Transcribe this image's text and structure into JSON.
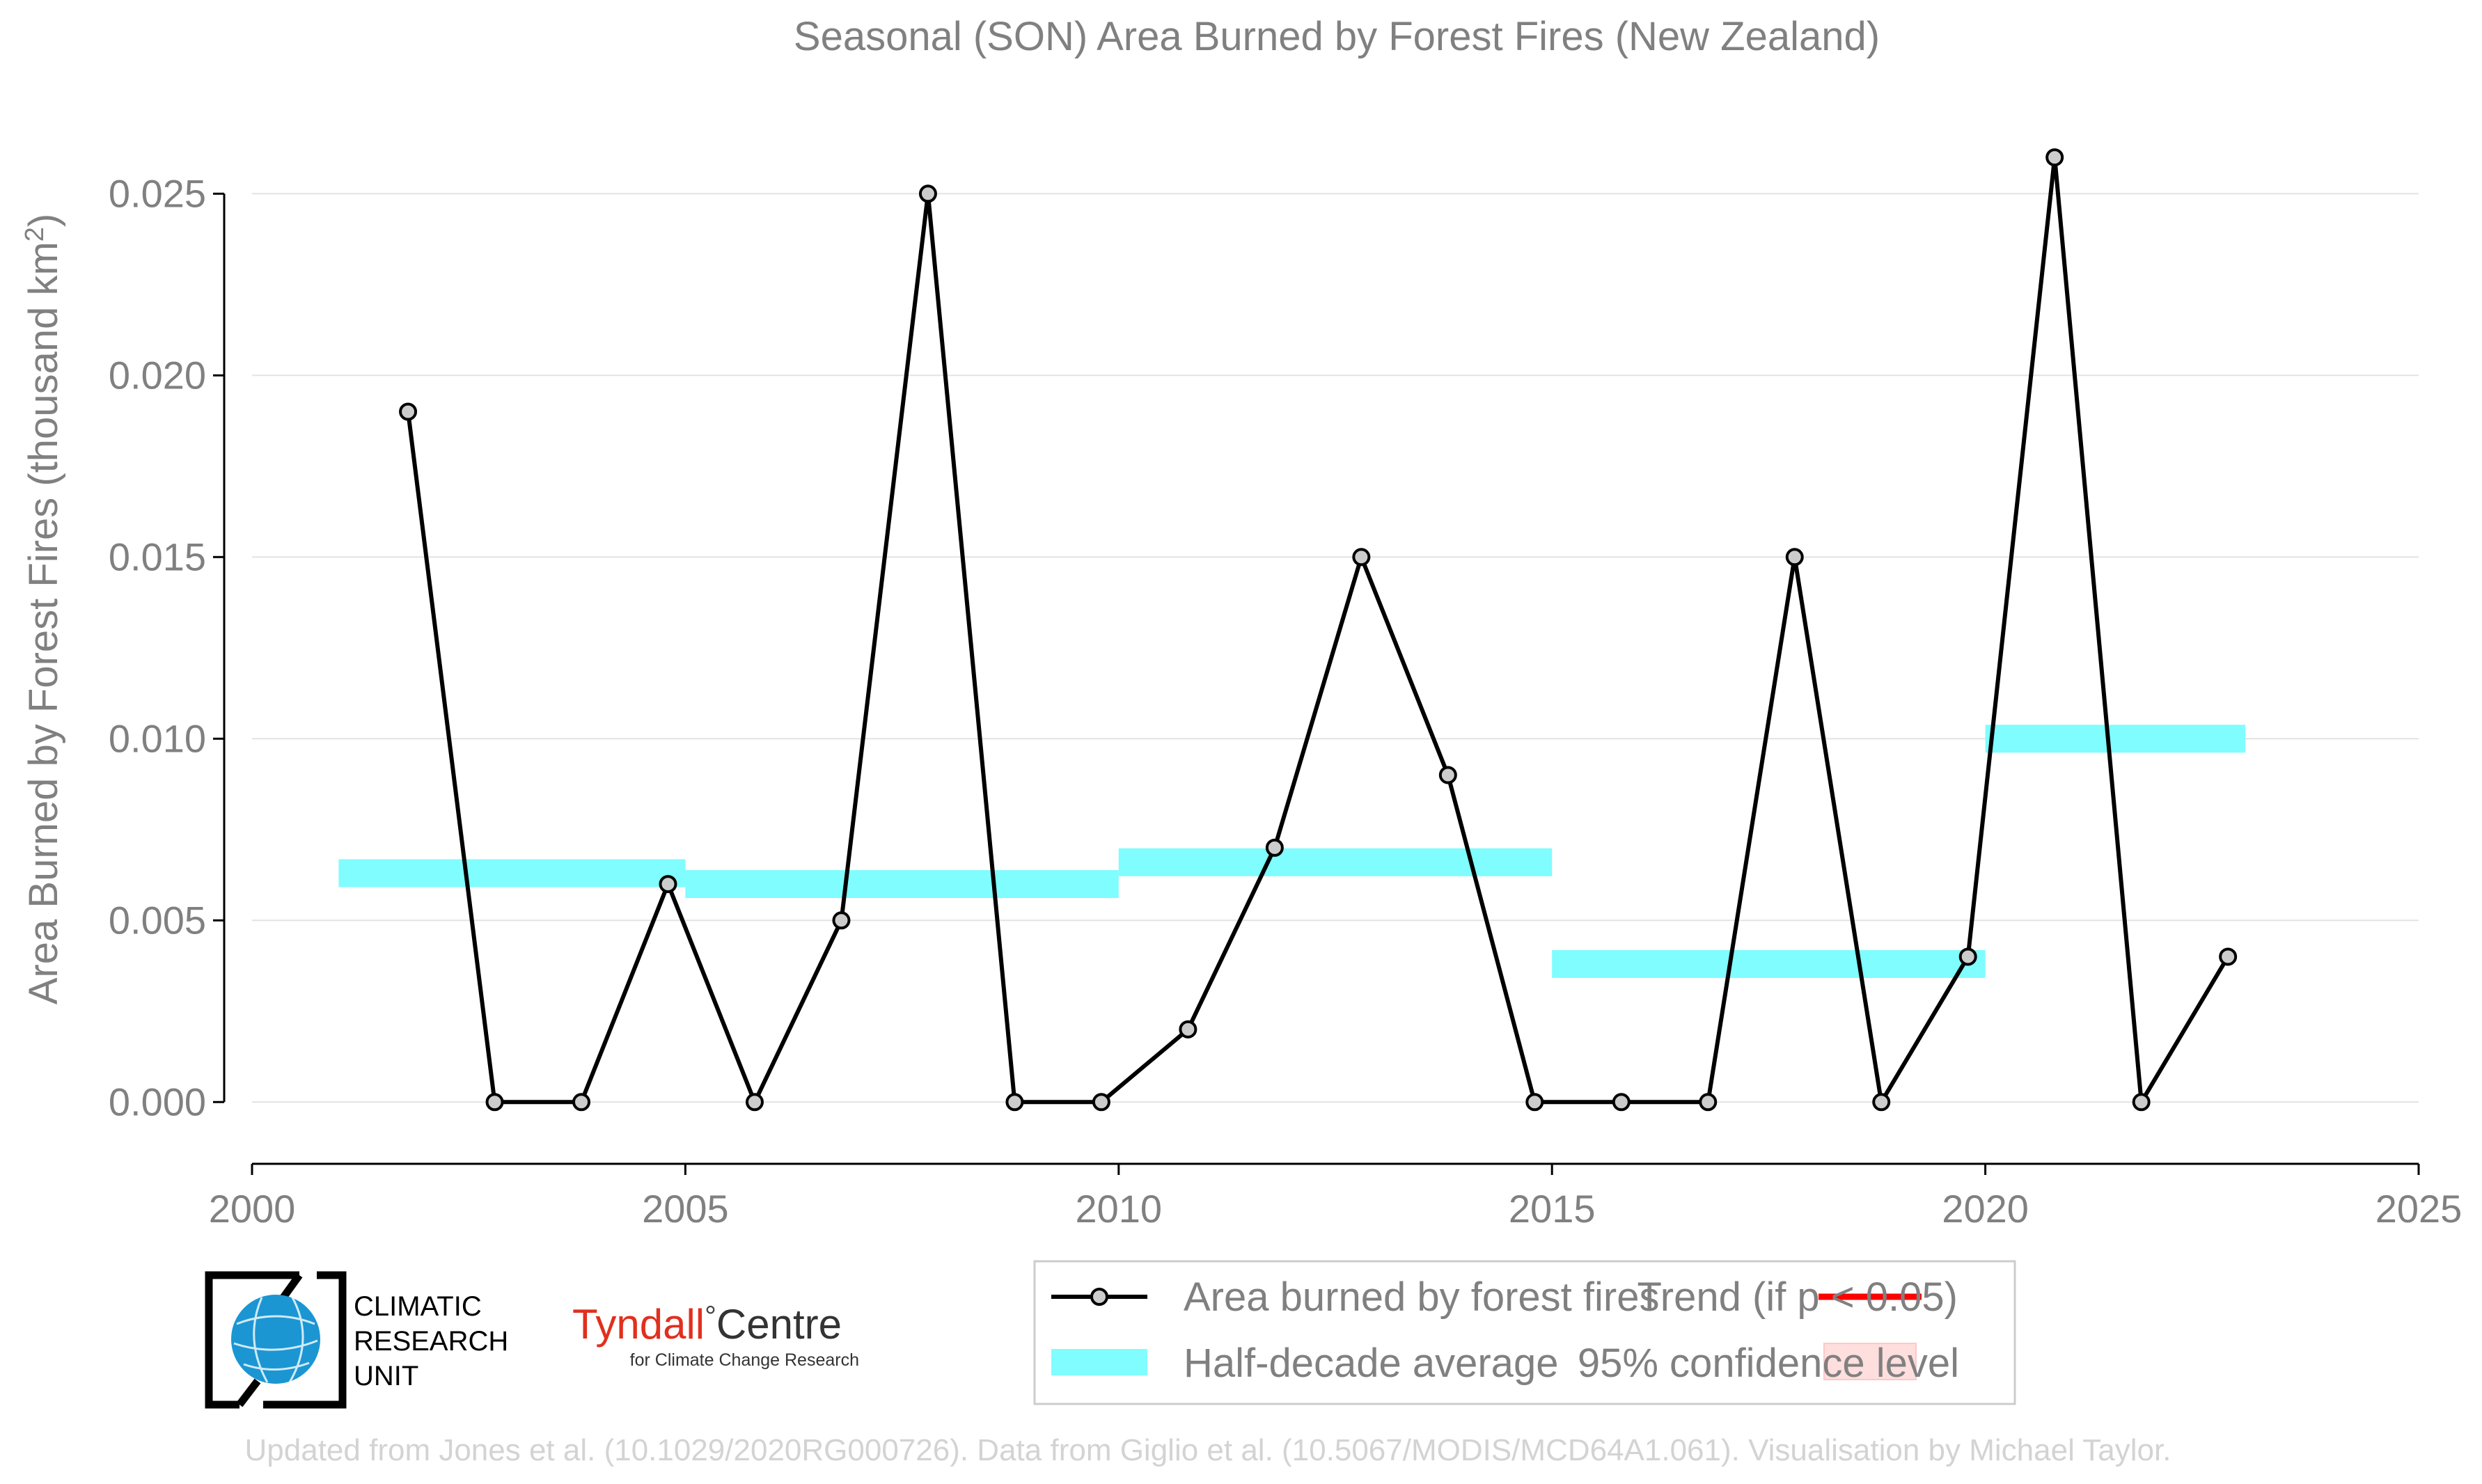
{
  "chart_data": {
    "type": "line",
    "title": "Seasonal (SON) Area Burned by Forest Fires (New Zealand)",
    "xlabel": "",
    "ylabel": "Area Burned by Forest Fires (thousand km",
    "ylabel_sup": "2",
    "ylabel_close": ")",
    "xlim": [
      2000,
      2025
    ],
    "ylim": [
      -0.0017,
      0.0265
    ],
    "x_ticks": [
      2000,
      2005,
      2010,
      2015,
      2020,
      2025
    ],
    "y_ticks": [
      "0.000",
      "0.005",
      "0.010",
      "0.015",
      "0.020",
      "0.025"
    ],
    "y_tick_values": [
      0,
      0.005,
      0.01,
      0.015,
      0.02,
      0.025
    ],
    "grid": "horizontal",
    "series": [
      {
        "name": "Area burned by forest fires",
        "color": "#000000",
        "marker_fill": "#cccccc",
        "x": [
          2001.8,
          2002.8,
          2003.8,
          2004.8,
          2005.8,
          2006.8,
          2007.8,
          2008.8,
          2009.8,
          2010.8,
          2011.8,
          2012.8,
          2013.8,
          2014.8,
          2015.8,
          2016.8,
          2017.8,
          2018.8,
          2019.8,
          2020.8,
          2021.8,
          2022.8
        ],
        "values": [
          0.019,
          0.0,
          0.0,
          0.006,
          0.0,
          0.005,
          0.025,
          0.0,
          0.0,
          0.002,
          0.007,
          0.015,
          0.009,
          0.0,
          0.0,
          0.0,
          0.015,
          0.0,
          0.004,
          0.026,
          0.0,
          0.004
        ]
      }
    ],
    "half_decade_average": {
      "name": "Half-decade average",
      "color": "#7ffdff",
      "segments": [
        {
          "x0": 2001,
          "x1": 2005,
          "value": 0.0063
        },
        {
          "x0": 2005,
          "x1": 2010,
          "value": 0.006
        },
        {
          "x0": 2010,
          "x1": 2015,
          "value": 0.0066
        },
        {
          "x0": 2015,
          "x1": 2020,
          "value": 0.0038
        },
        {
          "x0": 2020,
          "x1": 2023,
          "value": 0.01
        }
      ]
    },
    "legend": {
      "placement": "bottom-right",
      "items": [
        {
          "label": "Area burned by forest fires",
          "kind": "line-marker",
          "color": "#000000"
        },
        {
          "label": "Trend (if p < 0.05)",
          "kind": "line",
          "color": "#ff0000"
        },
        {
          "label": "Half-decade average",
          "kind": "band",
          "color": "#7ffdff"
        },
        {
          "label": "95% confidence level",
          "kind": "patch",
          "color": "#ffdede"
        }
      ]
    }
  },
  "logos": {
    "cru_lines": [
      "CLIMATIC",
      "RESEARCH",
      "UNIT"
    ],
    "tyndall_name": "Tyndall",
    "tyndall_degree": "°",
    "tyndall_centre": "Centre",
    "tyndall_sub": "for Climate Change Research"
  },
  "footer": "Updated from Jones et al. (10.1029/2020RG000726). Data from Giglio et al. (10.5067/MODIS/MCD64A1.061). Visualisation by Michael Taylor."
}
